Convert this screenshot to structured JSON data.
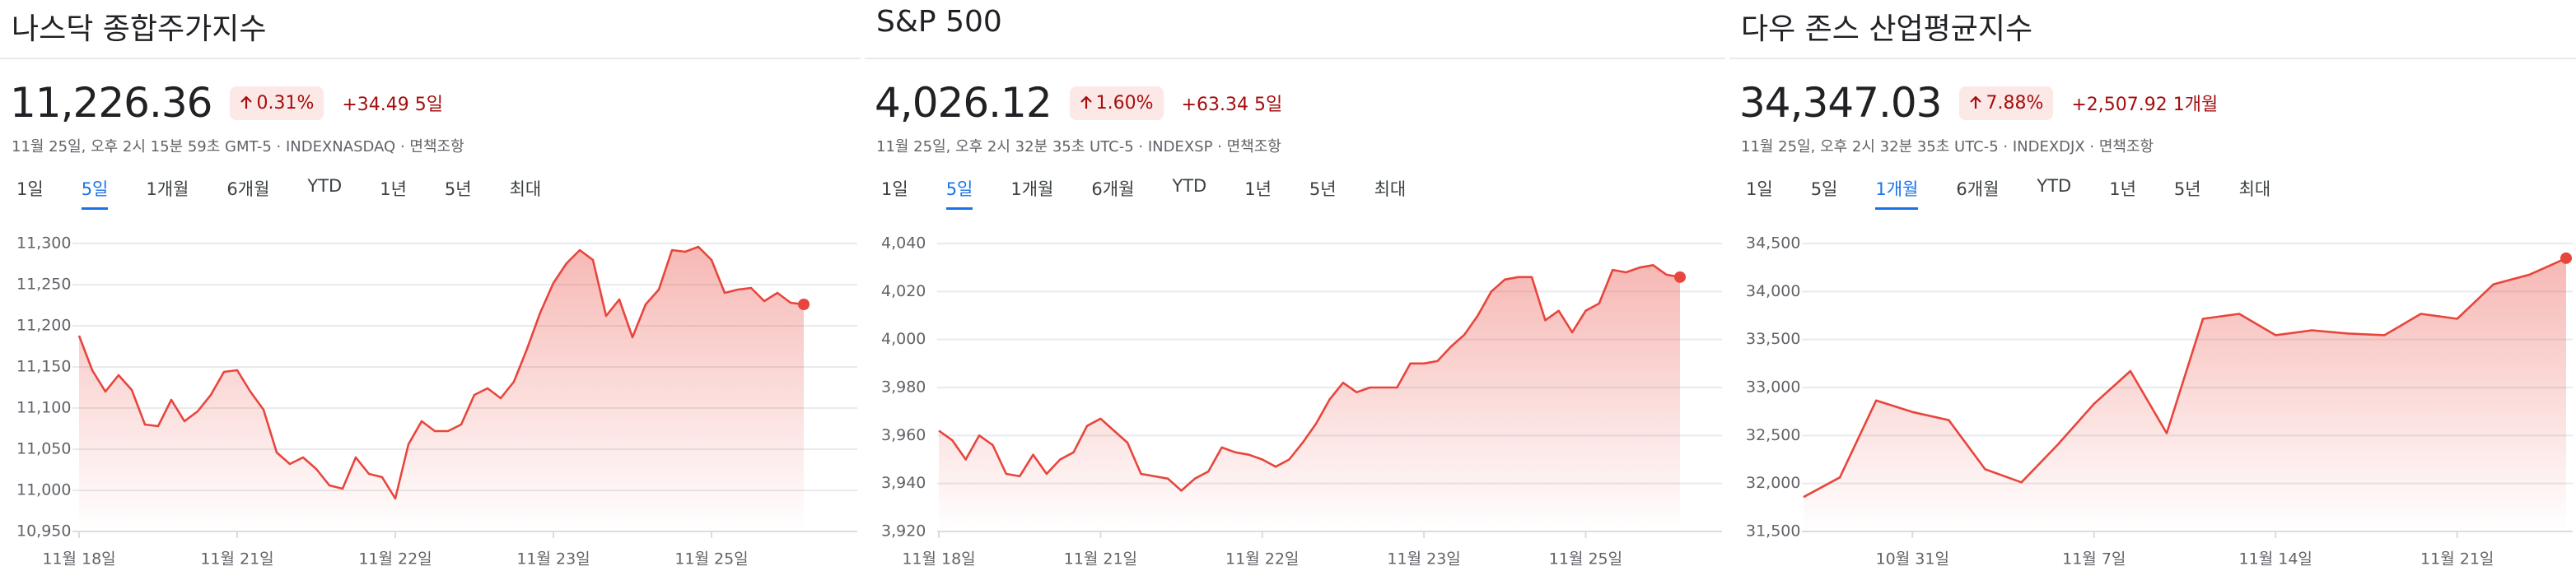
{
  "chart_data": [
    {
      "type": "line",
      "title": "나스닥 종합주가지수",
      "price": "11,226.36",
      "change_pct": "0.31%",
      "change_abs": "+34.49",
      "change_period": "5일",
      "timestamp": "11월 25일, 오후 2시 15분 59초 GMT-5 · INDEXNASDAQ · 면책조항",
      "tabs": [
        "1일",
        "5일",
        "1개월",
        "6개월",
        "YTD",
        "1년",
        "5년",
        "최대"
      ],
      "selected_tab": 1,
      "color": "#e8453c",
      "categories": [
        "11월 18일",
        null,
        null,
        null,
        null,
        null,
        null,
        null,
        null,
        null,
        null,
        null,
        "11월 21일",
        null,
        null,
        null,
        null,
        null,
        null,
        null,
        null,
        null,
        null,
        null,
        "11월 22일",
        null,
        null,
        null,
        null,
        null,
        null,
        null,
        null,
        null,
        null,
        null,
        "11월 23일",
        null,
        null,
        null,
        null,
        null,
        null,
        null,
        null,
        null,
        null,
        null,
        "11월 25일",
        null,
        null,
        null,
        null,
        null,
        null,
        null
      ],
      "values": [
        11188,
        11146,
        11120,
        11140,
        11122,
        11080,
        11078,
        11110,
        11084,
        11096,
        11116,
        11144,
        11146,
        11120,
        11098,
        11046,
        11032,
        11040,
        11026,
        11006,
        11002,
        11040,
        11020,
        11016,
        10990,
        11056,
        11084,
        11072,
        11072,
        11080,
        11116,
        11124,
        11112,
        11132,
        11172,
        11216,
        11252,
        11276,
        11292,
        11280,
        11212,
        11232,
        11186,
        11226,
        11244,
        11292,
        11290,
        11296,
        11280,
        11240,
        11244,
        11246,
        11230,
        11240,
        11228,
        11226
      ],
      "ylim": [
        10950,
        11300
      ],
      "yticks": [
        {
          "value": 10950,
          "label": "10,950"
        },
        {
          "value": 11000,
          "label": "11,000"
        },
        {
          "value": 11050,
          "label": "11,050"
        },
        {
          "value": 11100,
          "label": "11,100"
        },
        {
          "value": 11150,
          "label": "11,150"
        },
        {
          "value": 11200,
          "label": "11,200"
        },
        {
          "value": 11250,
          "label": "11,250"
        },
        {
          "value": 11300,
          "label": "11,300"
        }
      ],
      "grid": true
    },
    {
      "type": "line",
      "title": "S&P 500",
      "price": "4,026.12",
      "change_pct": "1.60%",
      "change_abs": "+63.34",
      "change_period": "5일",
      "timestamp": "11월 25일, 오후 2시 32분 35초 UTC-5 · INDEXSP · 면책조항",
      "tabs": [
        "1일",
        "5일",
        "1개월",
        "6개월",
        "YTD",
        "1년",
        "5년",
        "최대"
      ],
      "selected_tab": 1,
      "color": "#e8453c",
      "categories": [
        "11월 18일",
        null,
        null,
        null,
        null,
        null,
        null,
        null,
        null,
        null,
        null,
        null,
        "11월 21일",
        null,
        null,
        null,
        null,
        null,
        null,
        null,
        null,
        null,
        null,
        null,
        "11월 22일",
        null,
        null,
        null,
        null,
        null,
        null,
        null,
        null,
        null,
        null,
        null,
        "11월 23일",
        null,
        null,
        null,
        null,
        null,
        null,
        null,
        null,
        null,
        null,
        null,
        "11월 25일",
        null,
        null,
        null,
        null,
        null,
        null,
        null
      ],
      "values": [
        3962,
        3958,
        3950,
        3960,
        3956,
        3944,
        3943,
        3952,
        3944,
        3950,
        3953,
        3964,
        3967,
        3962,
        3957,
        3944,
        3943,
        3942,
        3937,
        3942,
        3945,
        3955,
        3953,
        3952,
        3950,
        3947,
        3950,
        3957,
        3965,
        3975,
        3982,
        3978,
        3980,
        3980,
        3980,
        3990,
        3990,
        3991,
        3997,
        4002,
        4010,
        4020,
        4025,
        4026,
        4026,
        4008,
        4012,
        4003,
        4012,
        4015,
        4029,
        4028,
        4030,
        4031,
        4027,
        4026
      ],
      "ylim": [
        3920,
        4040
      ],
      "yticks": [
        {
          "value": 3920,
          "label": "3,920"
        },
        {
          "value": 3940,
          "label": "3,940"
        },
        {
          "value": 3960,
          "label": "3,960"
        },
        {
          "value": 3980,
          "label": "3,980"
        },
        {
          "value": 4000,
          "label": "4,000"
        },
        {
          "value": 4020,
          "label": "4,020"
        },
        {
          "value": 4040,
          "label": "4,040"
        }
      ],
      "grid": true
    },
    {
      "type": "line",
      "title": "다우 존스 산업평균지수",
      "price": "34,347.03",
      "change_pct": "7.88%",
      "change_abs": "+2,507.92",
      "change_period": "1개월",
      "timestamp": "11월 25일, 오후 2시 32분 35초 UTC-5 · INDEXDJX · 면책조항",
      "tabs": [
        "1일",
        "5일",
        "1개월",
        "6개월",
        "YTD",
        "1년",
        "5년",
        "최대"
      ],
      "selected_tab": 2,
      "color": "#e8453c",
      "categories": [
        null,
        null,
        null,
        "10월 31일",
        null,
        null,
        null,
        null,
        "11월 7일",
        null,
        null,
        null,
        null,
        "11월 14일",
        null,
        null,
        null,
        null,
        "11월 21일",
        null,
        null,
        null
      ],
      "values": [
        31858,
        32063,
        32865,
        32745,
        32660,
        32148,
        32012,
        32404,
        32830,
        33171,
        32523,
        33716,
        33767,
        33545,
        33596,
        33562,
        33545,
        33767,
        33716,
        34075,
        34177,
        34347
      ],
      "ylim": [
        31500,
        34500
      ],
      "yticks": [
        {
          "value": 31500,
          "label": "31,500"
        },
        {
          "value": 32000,
          "label": "32,000"
        },
        {
          "value": 32500,
          "label": "32,500"
        },
        {
          "value": 33000,
          "label": "33,000"
        },
        {
          "value": 33500,
          "label": "33,500"
        },
        {
          "value": 34000,
          "label": "34,000"
        },
        {
          "value": 34500,
          "label": "34,500"
        }
      ],
      "grid": true
    }
  ]
}
